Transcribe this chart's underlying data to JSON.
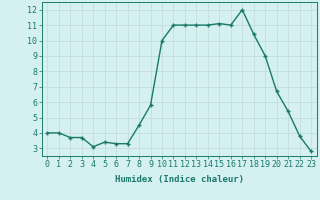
{
  "x": [
    0,
    1,
    2,
    3,
    4,
    5,
    6,
    7,
    8,
    9,
    10,
    11,
    12,
    13,
    14,
    15,
    16,
    17,
    18,
    19,
    20,
    21,
    22,
    23
  ],
  "y": [
    4.0,
    4.0,
    3.7,
    3.7,
    3.1,
    3.4,
    3.3,
    3.3,
    4.5,
    5.8,
    10.0,
    11.0,
    11.0,
    11.0,
    11.0,
    11.1,
    11.0,
    12.0,
    10.4,
    9.0,
    6.7,
    5.4,
    3.8,
    2.8
  ],
  "line_color": "#1a7a6a",
  "marker": "+",
  "marker_size": 3,
  "bg_color": "#d4f0f0",
  "grid_major_color": "#c0d8d8",
  "xlabel": "Humidex (Indice chaleur)",
  "yticks": [
    3,
    4,
    5,
    6,
    7,
    8,
    9,
    10,
    11,
    12
  ],
  "xlim": [
    -0.5,
    23.5
  ],
  "ylim": [
    2.5,
    12.5
  ],
  "xlabel_fontsize": 6.5,
  "tick_fontsize": 6,
  "line_width": 1.0
}
